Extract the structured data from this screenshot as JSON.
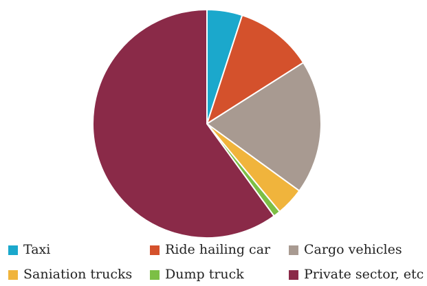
{
  "chart_data": {
    "type": "pie",
    "categories": [
      "Taxi",
      "Ride hailing car",
      "Cargo vehicles",
      "Saniation trucks",
      "Dump truck",
      "Private sector, etc"
    ],
    "values": [
      5,
      11,
      19,
      4,
      1,
      60
    ],
    "colors": [
      "#1ba8cc",
      "#d4512c",
      "#a89a91",
      "#f0b43c",
      "#7cbf45",
      "#8a2a48"
    ]
  }
}
